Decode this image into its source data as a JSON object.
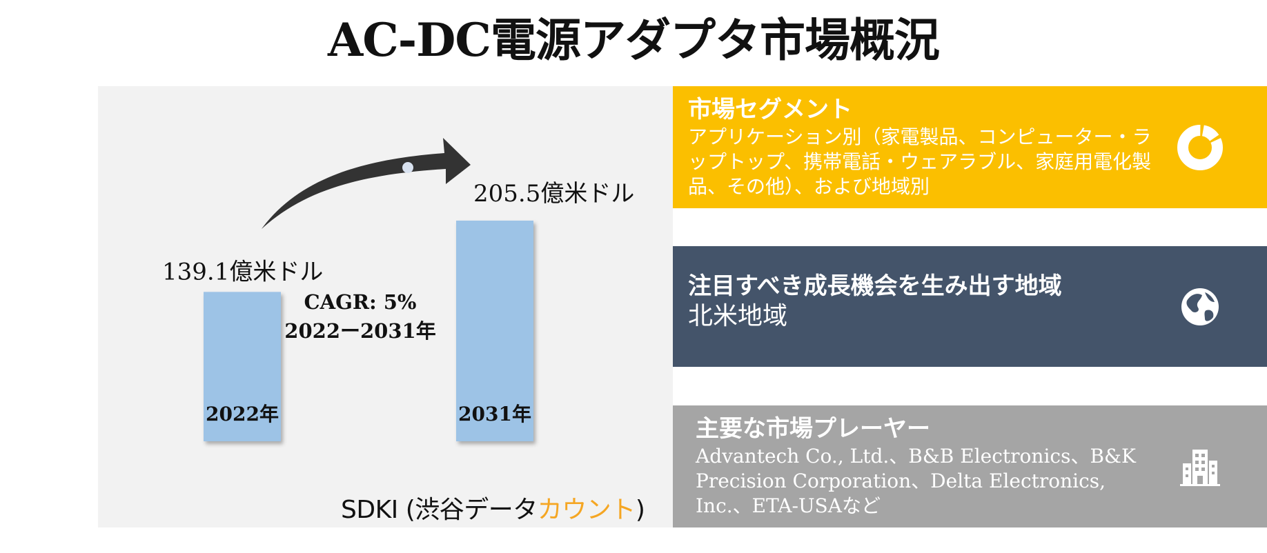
{
  "title": "AC-DC電源アダプタ市場概況",
  "chart_data": {
    "type": "bar",
    "categories": [
      "2022年",
      "2031年"
    ],
    "values": [
      139.1,
      205.5
    ],
    "value_labels": [
      "139.1億米ドル",
      "205.5億米ドル"
    ],
    "unit": "億米ドル",
    "cagr_label": "CAGR: 5%",
    "cagr_period": "2022ー2031年",
    "colors": {
      "bar": "#9dc3e6",
      "arrow": "#333333"
    }
  },
  "credit": {
    "main": "SDKI (渋谷データ",
    "accent": "カウント",
    "close": ")"
  },
  "cards": {
    "segment": {
      "title": "市場セグメント",
      "body": "アプリケーション別（家電製品、コンピューター・ラップトップ、携帯電話・ウェアラブル、家庭用電化製品、その他）、および地域別",
      "icon": "donut-chart-icon",
      "color": "#fbbf00"
    },
    "region": {
      "title": "注目すべき成長機会を生み出す地域",
      "body": "北米地域",
      "icon": "globe-icon",
      "color": "#44546a"
    },
    "players": {
      "title": "主要な市場プレーヤー",
      "body": "Advantech Co., Ltd.、B&B Electronics、B&K Precision Corporation、Delta Electronics, Inc.、ETA-USAなど",
      "icon": "buildings-icon",
      "color": "#a5a5a5"
    }
  }
}
